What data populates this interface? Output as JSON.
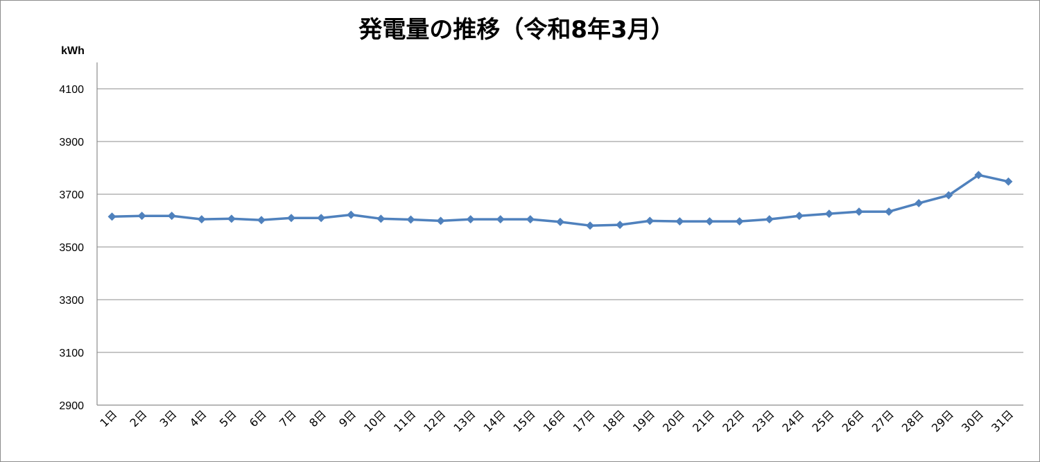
{
  "chart_data": {
    "type": "line",
    "title": "発電量の推移（令和8年3月）",
    "ylabel": "kWh",
    "xlabel": "",
    "ylim": [
      2900,
      4100
    ],
    "yticks": [
      2900,
      3100,
      3300,
      3500,
      3700,
      3900,
      4100
    ],
    "grid": true,
    "legend": "none",
    "line_color": "#4f81bd",
    "categories": [
      "1日",
      "2日",
      "3日",
      "4日",
      "5日",
      "6日",
      "7日",
      "8日",
      "9日",
      "10日",
      "11日",
      "12日",
      "13日",
      "14日",
      "15日",
      "16日",
      "17日",
      "18日",
      "19日",
      "20日",
      "21日",
      "22日",
      "23日",
      "24日",
      "25日",
      "26日",
      "27日",
      "28日",
      "29日",
      "30日",
      "31日"
    ],
    "values": [
      3615,
      3618,
      3618,
      3605,
      3607,
      3602,
      3610,
      3610,
      3622,
      3607,
      3604,
      3599,
      3605,
      3605,
      3605,
      3595,
      3581,
      3584,
      3599,
      3597,
      3597,
      3597,
      3605,
      3618,
      3626,
      3634,
      3634,
      3666,
      3696,
      3773,
      3748
    ]
  }
}
